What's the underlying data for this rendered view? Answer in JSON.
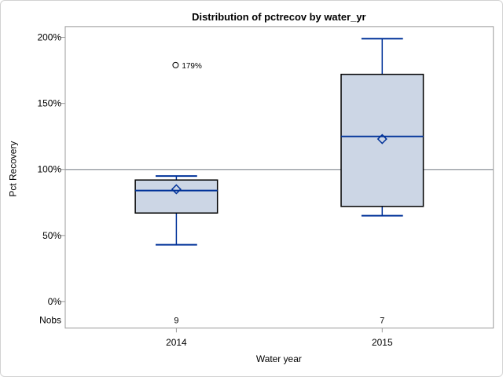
{
  "window": {
    "background": "#ffffff",
    "border_color": "#d2d2d2"
  },
  "colors": {
    "box_fill": "#ccd6e5",
    "box_border": "#000000",
    "line_blue": "#003299",
    "axis_gray": "#9a9a9a",
    "reference_line_gray": "#a0a5ab",
    "text": "#000000"
  },
  "chart_data": {
    "type": "boxplot",
    "title": "Distribution of pctrecov by water_yr",
    "xlabel": "Water year",
    "ylabel": "Pct Recovery",
    "ylim": [
      0,
      200
    ],
    "grid": false,
    "reference_line_value": 100,
    "y_ticks": [
      {
        "label": "0%",
        "value": 0
      },
      {
        "label": "50%",
        "value": 50
      },
      {
        "label": "100%",
        "value": 100
      },
      {
        "label": "150%",
        "value": 150
      },
      {
        "label": "200%",
        "value": 200
      }
    ],
    "nobs_label": "Nobs",
    "categories": [
      "2014",
      "2015"
    ],
    "series": [
      {
        "category": "2014",
        "nobs": "9",
        "whisker_low": 43,
        "q1": 67,
        "median": 84,
        "mean": 85,
        "q3": 92,
        "whisker_high": 95,
        "outliers": [
          {
            "value": 179,
            "label": "179%"
          }
        ]
      },
      {
        "category": "2015",
        "nobs": "7",
        "whisker_low": 65,
        "q1": 72,
        "median": 125,
        "mean": 123,
        "q3": 172,
        "whisker_high": 199,
        "outliers": []
      }
    ]
  }
}
